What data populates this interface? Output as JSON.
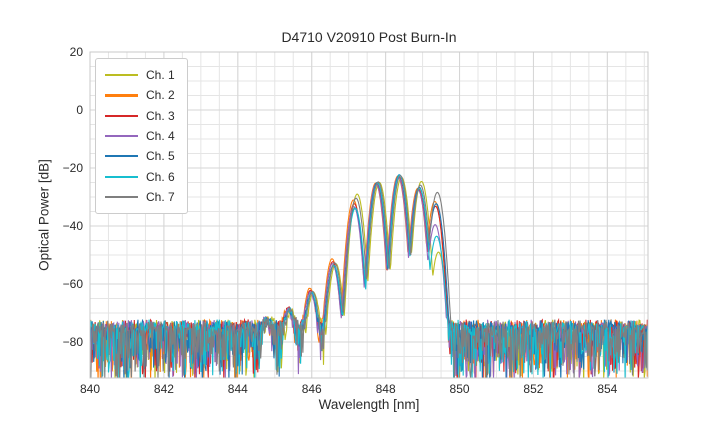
{
  "chart_data": {
    "type": "line",
    "title": "D4710 V20910 Post Burn-In",
    "xlabel": "Wavelength [nm]",
    "ylabel": "Optical Power [dB]",
    "xlim": [
      840,
      855.1
    ],
    "ylim": [
      -92.4,
      20
    ],
    "xticks": [
      {
        "value": 840,
        "label": "840"
      },
      {
        "value": 842,
        "label": "842"
      },
      {
        "value": 844,
        "label": "844"
      },
      {
        "value": 846,
        "label": "846"
      },
      {
        "value": 848,
        "label": "848"
      },
      {
        "value": 850,
        "label": "850"
      },
      {
        "value": 852,
        "label": "852"
      },
      {
        "value": 854,
        "label": "854"
      }
    ],
    "yticks": [
      {
        "value": 20,
        "label": "20"
      },
      {
        "value": 0,
        "label": "0"
      },
      {
        "value": -20,
        "label": "−20"
      },
      {
        "value": -40,
        "label": "−40"
      },
      {
        "value": -60,
        "label": "−60"
      },
      {
        "value": -80,
        "label": "−80"
      }
    ],
    "grid": {
      "visible": true,
      "minor_x_step_nm": 0.5,
      "minor_y_step_db": 5,
      "major_x_step_nm": 2,
      "major_y_step_db": 20,
      "minor_color": "#e5e5e5",
      "major_color": "#d6d6d6"
    },
    "legend": {
      "position": "upper-left"
    },
    "signal_model": {
      "description": "Side-lobed laser spectrum between ~845.3 and ~849.5 nm rising out of a noise floor; ripple lobes spaced ~0.55 nm; steep cliff on the long-wavelength edge near 849.5 nm",
      "lobe_centers_nm": [
        844.78,
        845.38,
        845.98,
        846.58,
        847.16,
        847.76,
        848.36,
        848.9,
        849.36
      ],
      "lobe_halfwidth_nm": 0.29,
      "lobe_falloff_db": 30,
      "main_peak_nm": 848.4,
      "main_peak_db": -22.5,
      "null_depth_db_between_main_lobes": -55
    },
    "noise_floor": {
      "top_db": -72,
      "typical_db": -76,
      "spike_min_db": -95,
      "seed": 11
    },
    "sample_step_nm": 0.02,
    "series": [
      {
        "name": "Ch. 1",
        "color": "#bcbd22",
        "wl_shift_nm": 0.07,
        "lobe_peaks_db": [
          -74.5,
          -70.0,
          -63.0,
          -53.0,
          -29.0,
          -25.0,
          -23.2,
          -24.6,
          -49.0
        ]
      },
      {
        "name": "Ch. 2",
        "color": "#ff7f0e",
        "wl_shift_nm": -0.03,
        "lobe_peaks_db": [
          -74.0,
          -69.0,
          -61.5,
          -51.3,
          -31.0,
          -25.2,
          -22.8,
          -27.0,
          -31.5
        ]
      },
      {
        "name": "Ch. 3",
        "color": "#d62728",
        "wl_shift_nm": -0.01,
        "lobe_peaks_db": [
          -74.5,
          -69.5,
          -62.3,
          -52.3,
          -32.3,
          -25.3,
          -22.9,
          -27.3,
          -33.2
        ]
      },
      {
        "name": "Ch. 4",
        "color": "#9467bd",
        "wl_shift_nm": -0.02,
        "lobe_peaks_db": [
          -74.5,
          -70.0,
          -63.0,
          -53.0,
          -33.3,
          -25.5,
          -23.0,
          -27.6,
          -39.5
        ]
      },
      {
        "name": "Ch. 5",
        "color": "#1f77b4",
        "wl_shift_nm": 0.01,
        "lobe_peaks_db": [
          -74.5,
          -70.0,
          -63.2,
          -53.5,
          -33.8,
          -25.0,
          -22.3,
          -26.6,
          -32.3
        ]
      },
      {
        "name": "Ch. 6",
        "color": "#17becf",
        "wl_shift_nm": 0.02,
        "lobe_peaks_db": [
          -74.5,
          -70.0,
          -63.2,
          -53.6,
          -33.9,
          -25.3,
          -22.4,
          -27.1,
          -43.5
        ]
      },
      {
        "name": "Ch. 7",
        "color": "#7f7f7f",
        "wl_shift_nm": 0.04,
        "lobe_peaks_db": [
          -74.5,
          -69.8,
          -62.8,
          -52.7,
          -30.4,
          -24.8,
          -22.6,
          -25.9,
          -28.4
        ]
      }
    ]
  }
}
